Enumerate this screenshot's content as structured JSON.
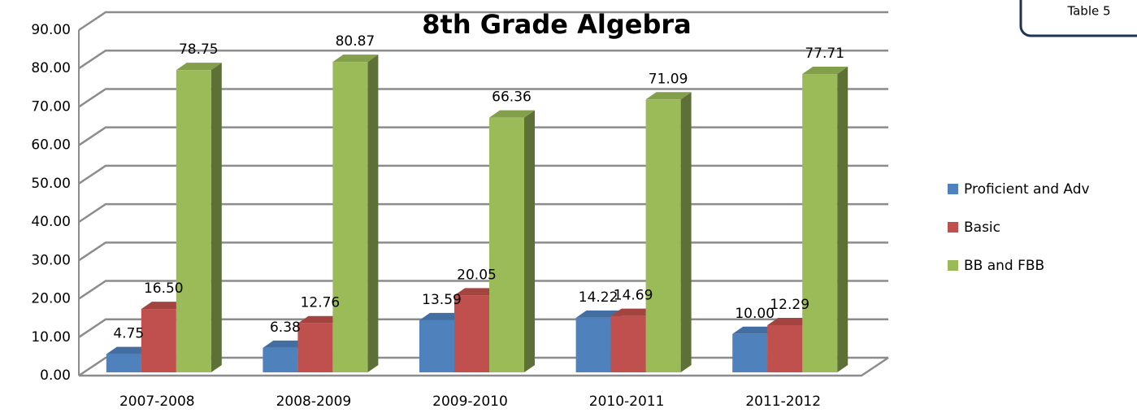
{
  "chart_data": {
    "type": "bar3d",
    "title": "8th Grade Algebra",
    "annotation": "Table 5",
    "categories": [
      "2007-2008",
      "2008-2009",
      "2009-2010",
      "2010-2011",
      "2011-2012"
    ],
    "series": [
      {
        "name": "Proficient and Adv",
        "color": "#4f81bd",
        "values": [
          4.75,
          6.38,
          13.59,
          14.22,
          10
        ],
        "value_labels": [
          "4.75",
          "6.38",
          "13.59",
          "14.22",
          "10.00"
        ]
      },
      {
        "name": "Basic",
        "color": "#c0504d",
        "values": [
          16.5,
          12.76,
          20.05,
          14.69,
          12.29
        ],
        "value_labels": [
          "16.50",
          "12.76",
          "20.05",
          "14.69",
          "12.29"
        ]
      },
      {
        "name": "BB and FBB",
        "color": "#9bbb59",
        "values": [
          78.75,
          80.87,
          66.36,
          71.09,
          77.71
        ],
        "value_labels": [
          "78.75",
          "80.87",
          "66.36",
          "71.09",
          "77.71"
        ]
      }
    ],
    "ylim": [
      0,
      90
    ],
    "yticks": [
      {
        "value": 0,
        "label": "0.00"
      },
      {
        "value": 10,
        "label": "10.00"
      },
      {
        "value": 20,
        "label": "20.00"
      },
      {
        "value": 30,
        "label": "30.00"
      },
      {
        "value": 40,
        "label": "40.00"
      },
      {
        "value": 50,
        "label": "50.00"
      },
      {
        "value": 60,
        "label": "60.00"
      },
      {
        "value": 70,
        "label": "70.00"
      },
      {
        "value": 80,
        "label": "80.00"
      },
      {
        "value": 90,
        "label": "90.00"
      }
    ],
    "grid": true,
    "legend": "right"
  }
}
